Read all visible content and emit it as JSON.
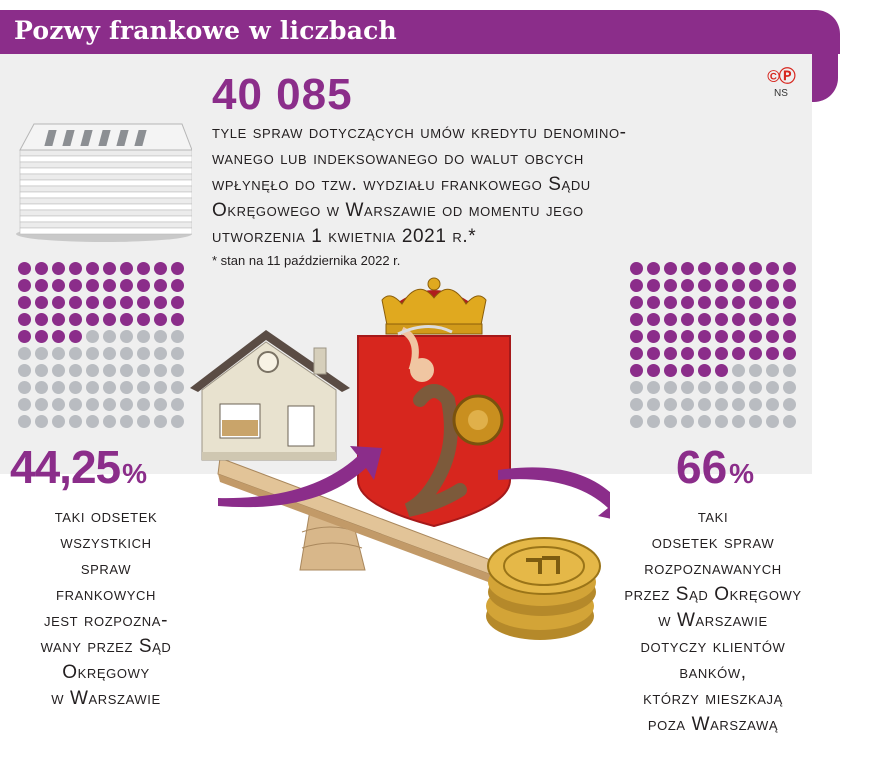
{
  "header": {
    "title": "Pozwy frankowe w liczbach"
  },
  "credit": {
    "symbols": "©Ⓟ",
    "author": "NS"
  },
  "main_stat": {
    "value": "40 085",
    "description": "tyle spraw dotyczących umów kredytu denomino-wanego lub indeksowanego do walut obcych wpłynęło do tzw. wydziału frankowego Sądu Okręgowego w Warszawie od momentu jego utworzenia 1 kwietnia 2021 r.*",
    "lines": [
      "tyle spraw dotyczących umów kredytu denomino-",
      "wanego lub indeksowanego do walut obcych",
      "wpłynęło do tzw. wydziału frankowego Sądu",
      "Okręgowego w Warszawie od momentu jego",
      "utworzenia 1 kwietnia 2021 r.*"
    ],
    "footnote": "* stan na 11 października 2022 r."
  },
  "left_stat": {
    "value": "44,25",
    "unit": "%",
    "percent": 44.25,
    "lines": [
      "taki odsetek",
      "wszystkich",
      "spraw",
      "frankowych",
      "jest rozpozna-",
      "wany przez Sąd",
      "Okręgowy",
      "w Warszawie"
    ]
  },
  "right_stat": {
    "value": "66",
    "unit": "%",
    "percent": 66,
    "lines": [
      "taki",
      "odsetek spraw",
      "rozpoznawanych",
      "przez Sąd Okręgowy",
      "w Warszawie",
      "dotyczy klientów",
      "banków,",
      "którzy mieszkają",
      "poza Warszawą"
    ]
  },
  "colors": {
    "accent": "#8b2d8a",
    "dot_off": "#b9bcc1",
    "panel": "#efefef",
    "coat_red": "#d7261e"
  },
  "icons": [
    "paper-stack-icon",
    "house-icon",
    "warsaw-coat-of-arms",
    "coin-stack-icon",
    "seesaw-icon",
    "arrow-icon"
  ]
}
